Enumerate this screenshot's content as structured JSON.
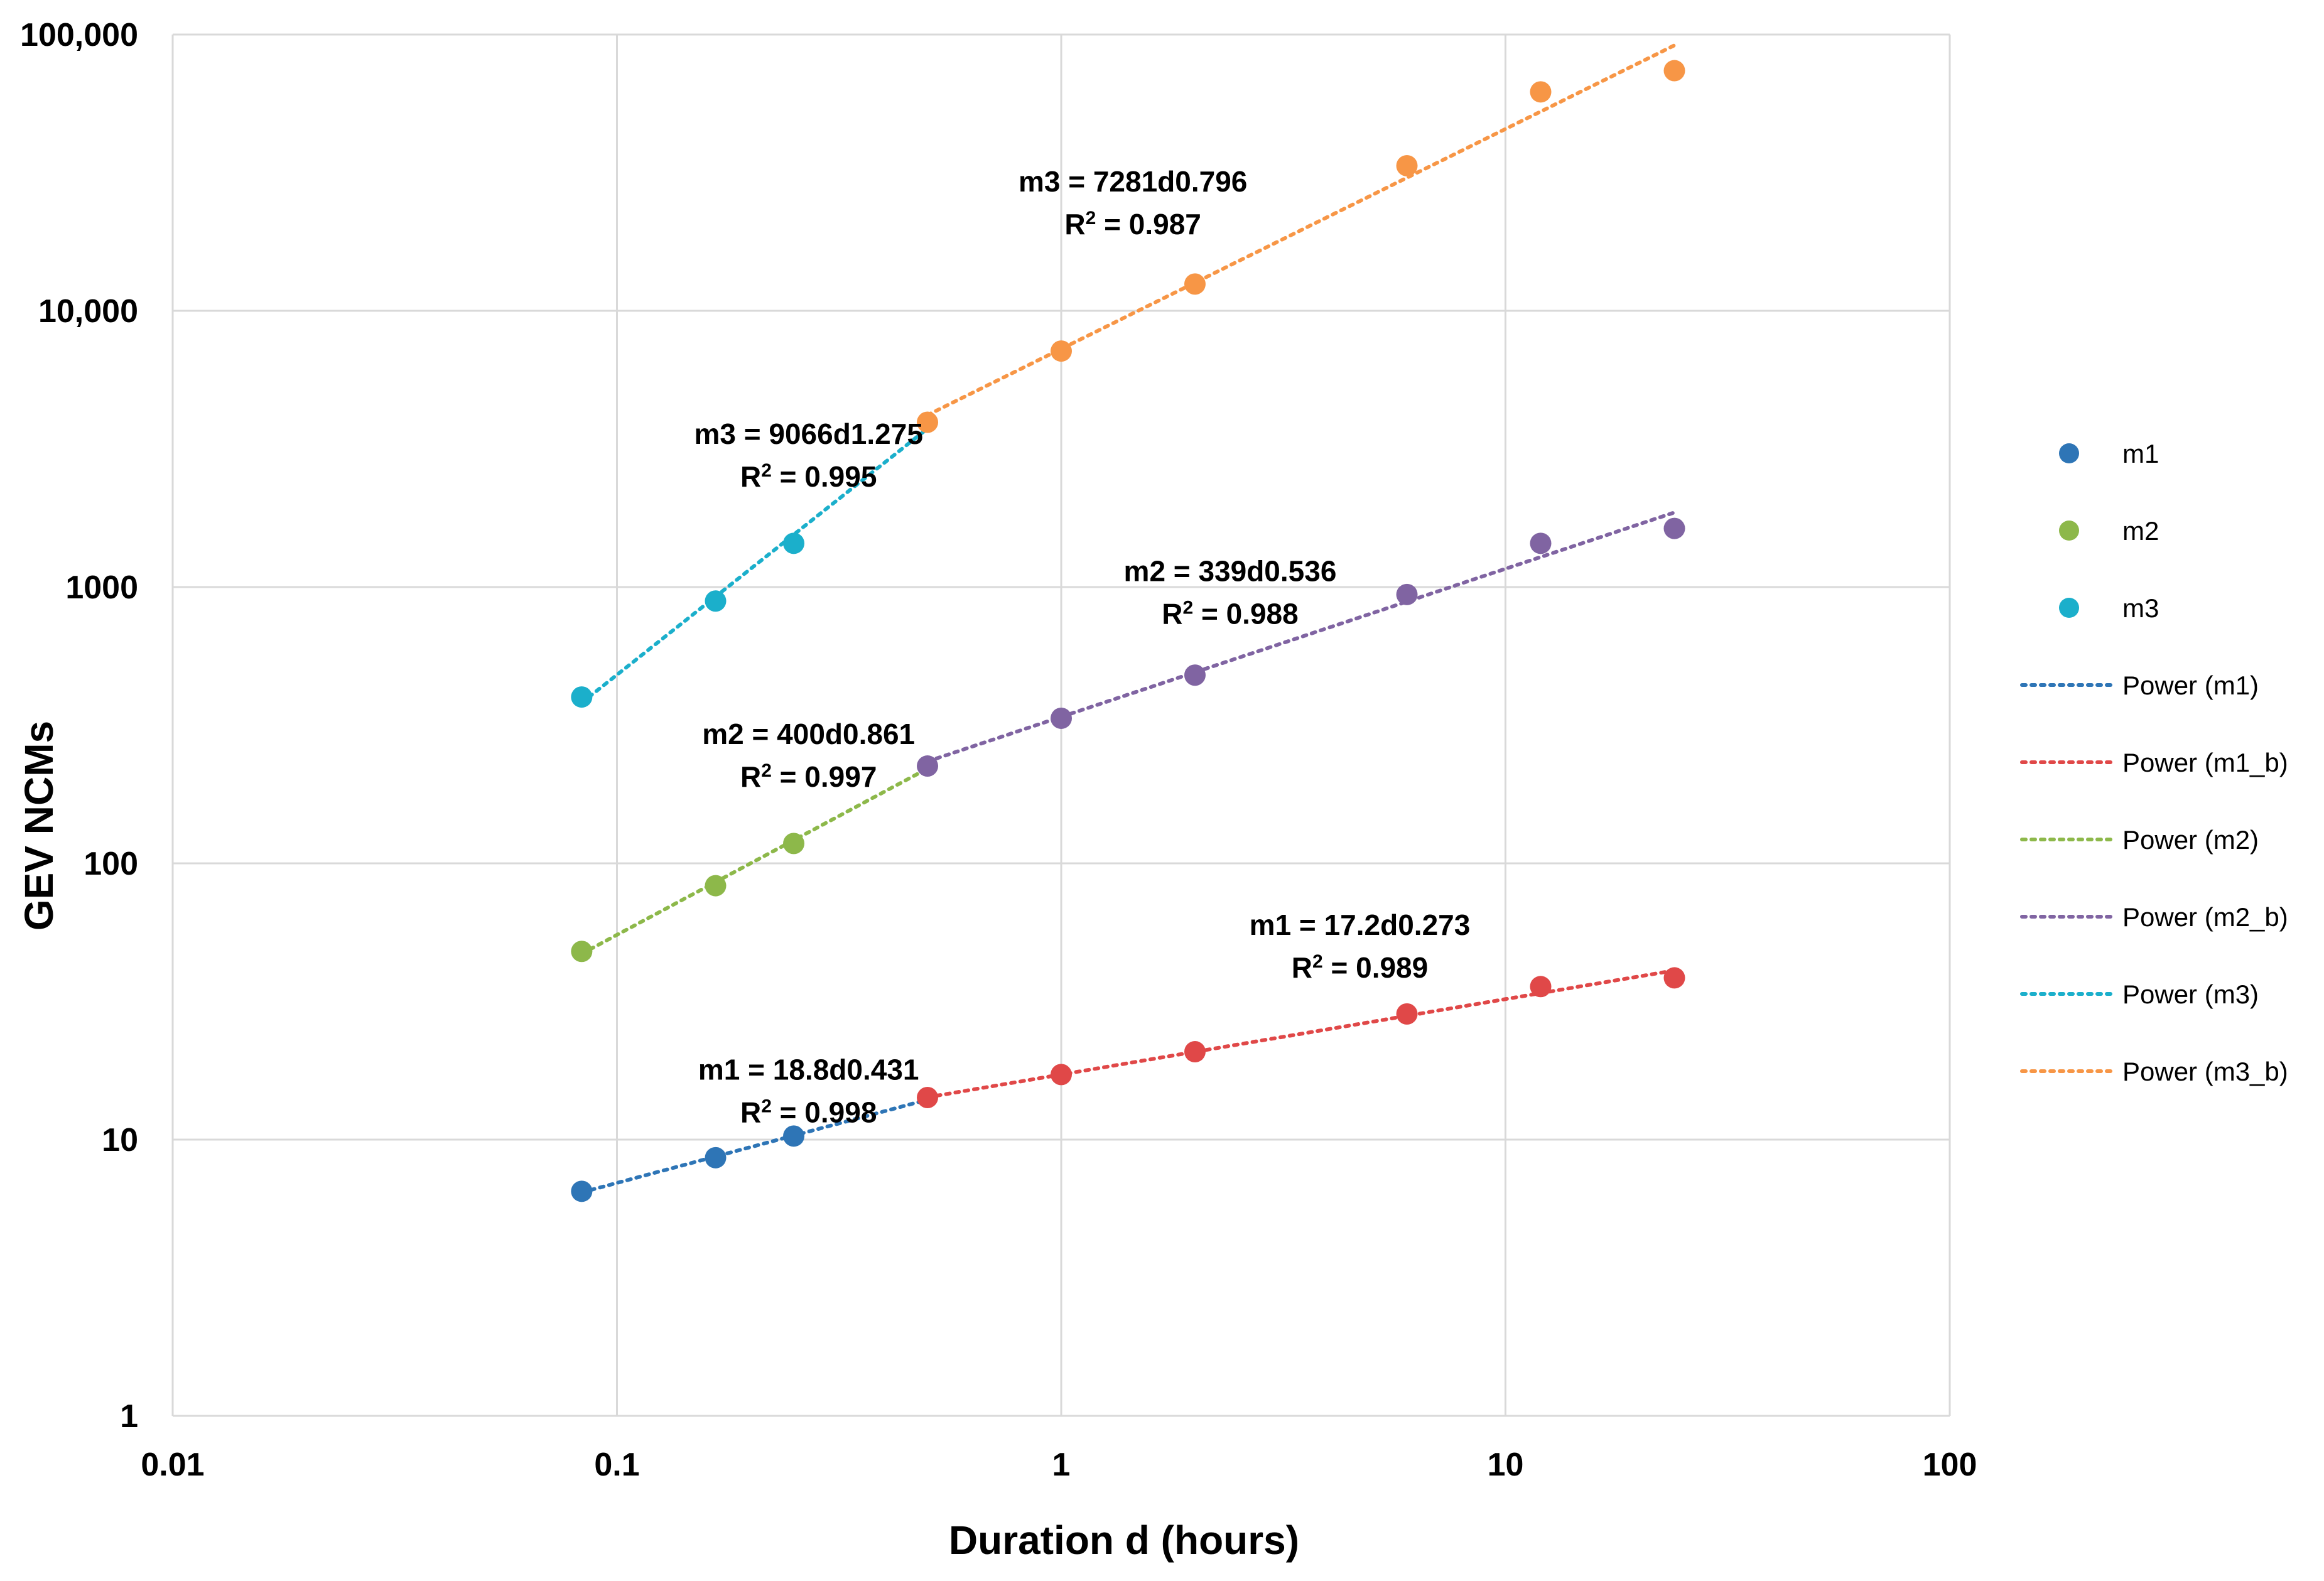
{
  "chart_data": {
    "type": "scatter",
    "title": "",
    "xlabel": "Duration d (hours)",
    "ylabel": "GEV NCMs",
    "x_scale": "log",
    "y_scale": "log",
    "xlim": [
      0.01,
      100
    ],
    "ylim": [
      1,
      100000
    ],
    "x_ticks": [
      0.01,
      0.1,
      1,
      10,
      100
    ],
    "x_tick_labels": [
      "0.01",
      "0.1",
      "1",
      "10",
      "100"
    ],
    "y_ticks": [
      1,
      10,
      100,
      1000,
      10000,
      100000
    ],
    "y_tick_labels": [
      "1",
      "10",
      "100",
      "1000",
      "10,000",
      "100,000"
    ],
    "grid": true,
    "legend_position": "right",
    "series": [
      {
        "name": "m1",
        "color": "#2E75B6",
        "points": [
          {
            "x": 0.0833,
            "y": 6.5
          },
          {
            "x": 0.1667,
            "y": 8.6
          },
          {
            "x": 0.25,
            "y": 10.3
          },
          {
            "x": 0.5,
            "y": 14.2,
            "color": "#E04848"
          },
          {
            "x": 1,
            "y": 17.2,
            "color": "#E04848"
          },
          {
            "x": 2,
            "y": 20.8,
            "color": "#E04848"
          },
          {
            "x": 6,
            "y": 28.5,
            "color": "#E04848"
          },
          {
            "x": 12,
            "y": 35.8,
            "color": "#E04848"
          },
          {
            "x": 24,
            "y": 38.5,
            "color": "#E04848"
          }
        ]
      },
      {
        "name": "m2",
        "color": "#8DB84A",
        "points": [
          {
            "x": 0.0833,
            "y": 48
          },
          {
            "x": 0.1667,
            "y": 83
          },
          {
            "x": 0.25,
            "y": 118
          },
          {
            "x": 0.5,
            "y": 225,
            "color": "#8064A2"
          },
          {
            "x": 1,
            "y": 335,
            "color": "#8064A2"
          },
          {
            "x": 2,
            "y": 480,
            "color": "#8064A2"
          },
          {
            "x": 6,
            "y": 940,
            "color": "#8064A2"
          },
          {
            "x": 12,
            "y": 1440,
            "color": "#8064A2"
          },
          {
            "x": 24,
            "y": 1630,
            "color": "#8064A2"
          }
        ]
      },
      {
        "name": "m3",
        "color": "#1BAFCB",
        "points": [
          {
            "x": 0.0833,
            "y": 400
          },
          {
            "x": 0.1667,
            "y": 890
          },
          {
            "x": 0.25,
            "y": 1440
          },
          {
            "x": 0.5,
            "y": 3950,
            "color": "#F79646"
          },
          {
            "x": 1,
            "y": 7150,
            "color": "#F79646"
          },
          {
            "x": 2,
            "y": 12500,
            "color": "#F79646"
          },
          {
            "x": 6,
            "y": 33500,
            "color": "#F79646"
          },
          {
            "x": 12,
            "y": 62000,
            "color": "#F79646"
          },
          {
            "x": 24,
            "y": 74000,
            "color": "#F79646"
          }
        ]
      }
    ],
    "trendlines": [
      {
        "name": "Power (m1)",
        "color": "#2E75B6",
        "a": 18.8,
        "b": 0.431,
        "x_range": [
          0.0833,
          0.5
        ]
      },
      {
        "name": "Power (m1_b)",
        "color": "#E04848",
        "a": 17.2,
        "b": 0.273,
        "x_range": [
          0.5,
          24
        ]
      },
      {
        "name": "Power (m2)",
        "color": "#8DB84A",
        "a": 400,
        "b": 0.861,
        "x_range": [
          0.0833,
          0.5
        ]
      },
      {
        "name": "Power (m2_b)",
        "color": "#8064A2",
        "a": 339,
        "b": 0.536,
        "x_range": [
          0.5,
          24
        ]
      },
      {
        "name": "Power (m3)",
        "color": "#1BAFCB",
        "a": 9066,
        "b": 1.275,
        "x_range": [
          0.0833,
          0.5
        ]
      },
      {
        "name": "Power (m3_b)",
        "color": "#F79646",
        "a": 7281,
        "b": 0.796,
        "x_range": [
          0.5,
          24
        ]
      }
    ],
    "annotations": [
      {
        "equation": "m3 = 7281d0.796",
        "r2_prefix": "R",
        "r2_sup": "2",
        "r2_value": " = 0.987",
        "anchor_x": 1.45,
        "anchor_y": 27000
      },
      {
        "equation": "m3 = 9066d1.275",
        "r2_prefix": "R",
        "r2_sup": "2",
        "r2_value": " = 0.995",
        "anchor_x": 0.27,
        "anchor_y": 3300
      },
      {
        "equation": "m2 = 339d0.536",
        "r2_prefix": "R",
        "r2_sup": "2",
        "r2_value": " = 0.988",
        "anchor_x": 2.4,
        "anchor_y": 1050
      },
      {
        "equation": "m2 = 400d0.861",
        "r2_prefix": "R",
        "r2_sup": "2",
        "r2_value": " = 0.997",
        "anchor_x": 0.27,
        "anchor_y": 270
      },
      {
        "equation": "m1 = 17.2d0.273",
        "r2_prefix": "R",
        "r2_sup": "2",
        "r2_value": " = 0.989",
        "anchor_x": 4.7,
        "anchor_y": 55
      },
      {
        "equation": "m1 = 18.8d0.431",
        "r2_prefix": "R",
        "r2_sup": "2",
        "r2_value": " = 0.998",
        "anchor_x": 0.27,
        "anchor_y": 16.5
      }
    ],
    "legend": [
      {
        "label": "m1",
        "kind": "marker",
        "color": "#2E75B6"
      },
      {
        "label": "m2",
        "kind": "marker",
        "color": "#8DB84A"
      },
      {
        "label": "m3",
        "kind": "marker",
        "color": "#1BAFCB"
      },
      {
        "label": "Power (m1)",
        "kind": "line",
        "color": "#2E75B6"
      },
      {
        "label": "Power (m1_b)",
        "kind": "line",
        "color": "#E04848"
      },
      {
        "label": "Power (m2)",
        "kind": "line",
        "color": "#8DB84A"
      },
      {
        "label": "Power (m2_b)",
        "kind": "line",
        "color": "#8064A2"
      },
      {
        "label": "Power (m3)",
        "kind": "line",
        "color": "#1BAFCB"
      },
      {
        "label": "Power (m3_b)",
        "kind": "line",
        "color": "#F79646"
      }
    ]
  }
}
